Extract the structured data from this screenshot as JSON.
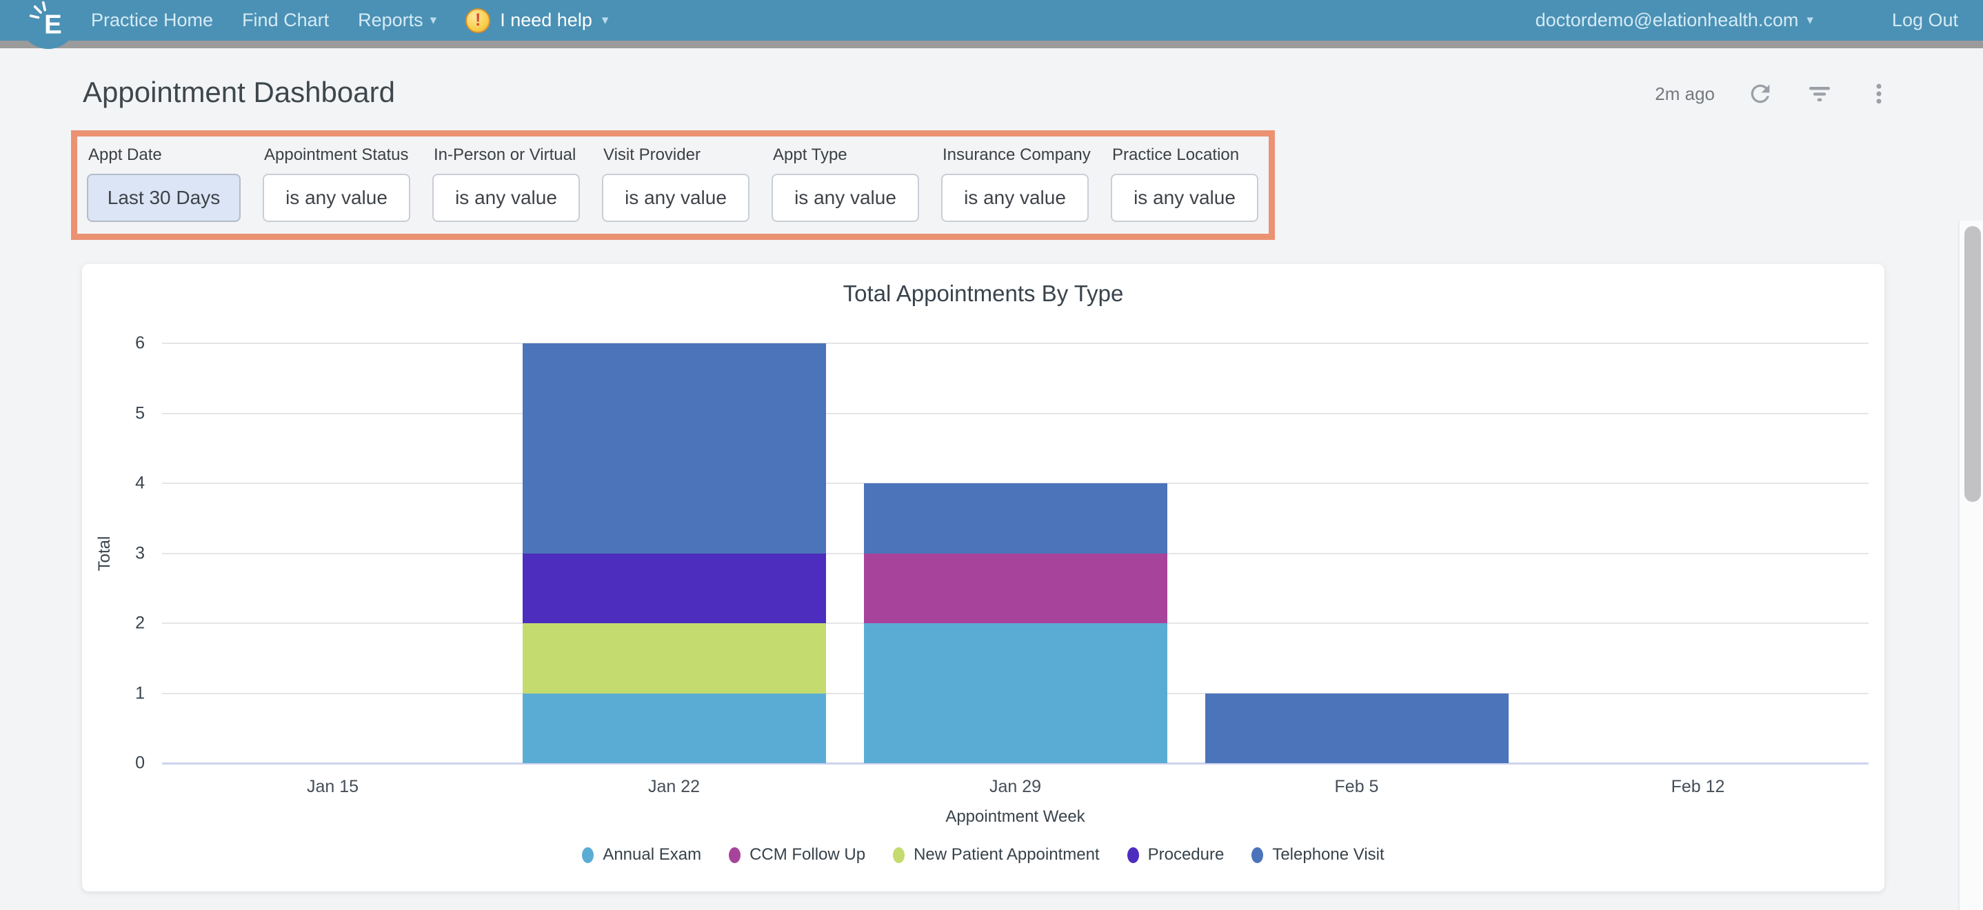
{
  "nav": {
    "items": [
      {
        "label": "Practice Home"
      },
      {
        "label": "Find Chart"
      },
      {
        "label": "Reports",
        "caret": true
      }
    ],
    "help": {
      "label": "I need help",
      "caret": true
    },
    "account": {
      "label": "doctordemo@elationhealth.com",
      "caret": true
    },
    "logout_label": "Log Out",
    "caret_glyph": "▾",
    "warning_glyph": "!"
  },
  "header": {
    "title": "Appointment Dashboard",
    "updated": "2m ago"
  },
  "filters": [
    {
      "label": "Appt Date",
      "value": "Last 30 Days",
      "active": true
    },
    {
      "label": "Appointment Status",
      "value": "is any value",
      "active": false
    },
    {
      "label": "In-Person or Virtual",
      "value": "is any value",
      "active": false
    },
    {
      "label": "Visit Provider",
      "value": "is any value",
      "active": false
    },
    {
      "label": "Appt Type",
      "value": "is any value",
      "active": false
    },
    {
      "label": "Insurance Company",
      "value": "is any value",
      "active": false
    },
    {
      "label": "Practice Location",
      "value": "is any value",
      "active": false
    }
  ],
  "colors": {
    "navbar": "#4A91B5",
    "filter_highlight_border": "#EB9273",
    "active_filter_bg": "#DBE5F6"
  },
  "chart_data": {
    "type": "bar",
    "stacked": true,
    "title": "Total Appointments By Type",
    "xlabel": "Appointment Week",
    "ylabel": "Total",
    "ylim": [
      0,
      6
    ],
    "ytick_step": 1,
    "grid": true,
    "legend_position": "bottom",
    "categories": [
      "Jan 15",
      "Jan 22",
      "Jan 29",
      "Feb 5",
      "Feb 12"
    ],
    "series": [
      {
        "name": "Annual Exam",
        "color": "#5BACD5",
        "values": [
          0,
          1,
          2,
          0,
          0
        ]
      },
      {
        "name": "CCM Follow Up",
        "color": "#A8439B",
        "values": [
          0,
          0,
          1,
          0,
          0
        ]
      },
      {
        "name": "New Patient Appointment",
        "color": "#C4DB6F",
        "values": [
          0,
          1,
          0,
          0,
          0
        ]
      },
      {
        "name": "Procedure",
        "color": "#4D2DBE",
        "values": [
          0,
          1,
          0,
          0,
          0
        ]
      },
      {
        "name": "Telephone Visit",
        "color": "#4B74BA",
        "values": [
          0,
          3,
          1,
          1,
          0
        ]
      }
    ]
  }
}
